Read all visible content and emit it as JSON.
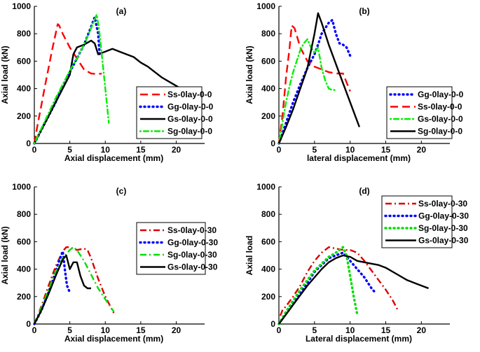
{
  "chart_data": [
    {
      "type": "line",
      "panel_label": "(a)",
      "xlabel": "Axial displacement (mm)",
      "ylabel": "Axial load (kN)",
      "xlim": [
        0,
        24
      ],
      "ylim": [
        0,
        1000
      ],
      "xticks": [
        0,
        5,
        10,
        15,
        20
      ],
      "yticks": [
        0,
        200,
        400,
        600,
        800,
        1000
      ],
      "legend_position": "right-middle",
      "series": [
        {
          "name": "Ss-0lay-0-0",
          "color": "#ff0000",
          "style": "dash",
          "x": [
            0,
            0.5,
            1,
            1.5,
            2,
            2.5,
            3,
            3.3,
            3.5,
            4,
            5,
            6,
            7,
            8,
            9,
            9.5
          ],
          "y": [
            0,
            150,
            280,
            420,
            550,
            680,
            800,
            870,
            860,
            800,
            700,
            620,
            540,
            510,
            505,
            510
          ]
        },
        {
          "name": "Gg-0lay-0-0",
          "color": "#0000ff",
          "style": "dot",
          "x": [
            0,
            1,
            2,
            3,
            4,
            5,
            6,
            7,
            8,
            8.5,
            9,
            9.2
          ],
          "y": [
            0,
            100,
            200,
            300,
            420,
            520,
            620,
            720,
            850,
            920,
            800,
            650
          ]
        },
        {
          "name": "Gs-0lay-0-0",
          "color": "#000000",
          "style": "solid",
          "x": [
            0,
            1,
            2,
            3,
            4,
            5,
            5.5,
            6,
            7,
            8,
            8.5,
            9,
            10,
            11,
            12,
            13,
            14,
            15,
            16,
            17,
            18,
            19,
            20,
            21
          ],
          "y": [
            0,
            100,
            200,
            300,
            400,
            500,
            650,
            700,
            720,
            750,
            730,
            650,
            670,
            690,
            670,
            650,
            630,
            590,
            560,
            520,
            480,
            450,
            420,
            390
          ]
        },
        {
          "name": "Sg-0lay-0-0",
          "color": "#00ee00",
          "style": "dotdash",
          "x": [
            0,
            1,
            2,
            3,
            4,
            5,
            6,
            7,
            8,
            8.8,
            9.2,
            9.6,
            10,
            10.5
          ],
          "y": [
            0,
            110,
            220,
            330,
            430,
            530,
            620,
            720,
            840,
            940,
            800,
            600,
            400,
            150
          ]
        }
      ]
    },
    {
      "type": "line",
      "panel_label": "(b)",
      "xlabel": "lateral displacement (mm)",
      "ylabel": "Axial load (kN)",
      "xlim": [
        0,
        24
      ],
      "ylim": [
        0,
        1000
      ],
      "xticks": [
        0,
        5,
        10,
        15,
        20
      ],
      "yticks": [
        0,
        200,
        400,
        600,
        800,
        1000
      ],
      "legend_position": "right-middle",
      "series": [
        {
          "name": "Gg-0lay-0-0",
          "color": "#0000ff",
          "style": "dot",
          "x": [
            0,
            1,
            2,
            3,
            4,
            5,
            5.5,
            6,
            6.5,
            7,
            7.5,
            8,
            8.5,
            9,
            9.5,
            10
          ],
          "y": [
            0,
            150,
            300,
            430,
            550,
            650,
            720,
            800,
            840,
            880,
            900,
            800,
            730,
            720,
            700,
            640
          ]
        },
        {
          "name": "Ss-0lay-0-0",
          "color": "#ff0000",
          "style": "dash",
          "x": [
            0,
            0.5,
            1,
            1.5,
            1.8,
            2.2,
            3,
            4,
            5,
            6,
            7,
            8,
            9,
            10
          ],
          "y": [
            0,
            200,
            480,
            700,
            860,
            840,
            700,
            600,
            560,
            540,
            520,
            510,
            510,
            380
          ]
        },
        {
          "name": "Gs-0lay-0-0",
          "color": "#00ee00",
          "style": "dotdash",
          "x": [
            0,
            0.5,
            1,
            1.5,
            2,
            2.5,
            3,
            3.5,
            4,
            4.5,
            5,
            5.5,
            6,
            6.5,
            7,
            7.5,
            8
          ],
          "y": [
            0,
            150,
            300,
            420,
            520,
            600,
            680,
            730,
            760,
            700,
            660,
            700,
            550,
            460,
            400,
            390,
            390
          ]
        },
        {
          "name": "Sg-0lay-0-0",
          "color": "#000000",
          "style": "solid",
          "x": [
            0,
            1,
            2,
            3,
            4,
            5,
            5.5,
            6,
            7,
            8,
            9,
            10,
            11.3
          ],
          "y": [
            0,
            120,
            250,
            400,
            550,
            800,
            950,
            880,
            720,
            580,
            440,
            300,
            120
          ]
        }
      ]
    },
    {
      "type": "line",
      "panel_label": "(c)",
      "xlabel": "Axial displacement (mm)",
      "ylabel": "Axial load (kN)",
      "xlim": [
        0,
        24
      ],
      "ylim": [
        0,
        1000
      ],
      "xticks": [
        0,
        5,
        10,
        15,
        20
      ],
      "yticks": [
        0,
        200,
        400,
        600,
        800,
        1000
      ],
      "legend_position": "right-middle",
      "series": [
        {
          "name": "Ss-0lay-0-30",
          "color": "#dd0000",
          "style": "dashdot",
          "x": [
            0,
            1,
            2,
            3,
            4,
            4.5,
            5,
            6,
            7,
            7.5,
            8,
            9,
            10,
            11.2
          ],
          "y": [
            0,
            130,
            280,
            420,
            530,
            560,
            560,
            540,
            550,
            540,
            480,
            330,
            200,
            80
          ]
        },
        {
          "name": "Gg-0lay-0-30",
          "color": "#0000ff",
          "style": "dot",
          "x": [
            0,
            1,
            2,
            3,
            3.5,
            4,
            4.3,
            4.6,
            5
          ],
          "y": [
            0,
            100,
            230,
            380,
            460,
            530,
            400,
            280,
            230
          ]
        },
        {
          "name": "Sg-0lay-0-30",
          "color": "#00dd00",
          "style": "dashdot",
          "x": [
            0,
            1,
            2,
            3,
            4,
            5,
            5.5,
            6,
            7,
            8,
            9,
            10,
            11.2
          ],
          "y": [
            0,
            120,
            250,
            380,
            480,
            540,
            560,
            540,
            460,
            360,
            260,
            180,
            90
          ]
        },
        {
          "name": "Gs-0lay-0-30",
          "color": "#000000",
          "style": "solid",
          "x": [
            0,
            1,
            2,
            3,
            4,
            4.5,
            5,
            5.5,
            6,
            6.5,
            7,
            7.5,
            8
          ],
          "y": [
            0,
            100,
            220,
            350,
            470,
            500,
            400,
            450,
            450,
            350,
            280,
            260,
            260
          ]
        }
      ]
    },
    {
      "type": "line",
      "panel_label": "(d)",
      "xlabel": "Lateral displacement (mm)",
      "ylabel": "Axial load",
      "xlim": [
        0,
        24
      ],
      "ylim": [
        0,
        1000
      ],
      "xticks": [
        0,
        5,
        10,
        15,
        20
      ],
      "yticks": [
        0,
        200,
        400,
        600,
        800,
        1000
      ],
      "legend_position": "top-right",
      "series": [
        {
          "name": "Ss-0lay-0-30",
          "color": "#dd0000",
          "style": "dashdot",
          "x": [
            0.2,
            0.5,
            1,
            2,
            3,
            4,
            5,
            6,
            7,
            8,
            9,
            10,
            11,
            12,
            13,
            14,
            15,
            16,
            16.7
          ],
          "y": [
            60,
            100,
            130,
            200,
            280,
            380,
            460,
            520,
            560,
            550,
            540,
            540,
            520,
            460,
            390,
            320,
            250,
            170,
            100
          ]
        },
        {
          "name": "Gg-0lay-0-30",
          "color": "#0000ff",
          "style": "dot",
          "x": [
            0,
            1,
            2,
            3,
            4,
            5,
            6,
            7,
            8,
            9,
            10,
            11,
            12,
            13,
            13.5
          ],
          "y": [
            0,
            80,
            150,
            220,
            300,
            380,
            430,
            480,
            500,
            520,
            460,
            400,
            340,
            260,
            230
          ]
        },
        {
          "name": "Sg-0lay-0-30",
          "color": "#00dd00",
          "style": "dot",
          "x": [
            0,
            1,
            2,
            3,
            4,
            5,
            6,
            7,
            8,
            9,
            9.5,
            10,
            10.5,
            11
          ],
          "y": [
            0,
            90,
            170,
            250,
            320,
            390,
            440,
            490,
            520,
            560,
            500,
            350,
            200,
            70
          ]
        },
        {
          "name": "Gs-0lay-0-30",
          "color": "#000000",
          "style": "solid",
          "x": [
            0,
            1,
            2,
            3,
            4,
            5,
            6,
            7,
            8,
            9,
            10,
            11,
            12,
            13,
            14,
            15,
            16,
            17,
            18,
            19,
            20,
            21
          ],
          "y": [
            0,
            70,
            140,
            210,
            280,
            340,
            400,
            450,
            480,
            500,
            490,
            460,
            450,
            440,
            430,
            410,
            380,
            350,
            320,
            300,
            280,
            260
          ]
        }
      ]
    }
  ]
}
